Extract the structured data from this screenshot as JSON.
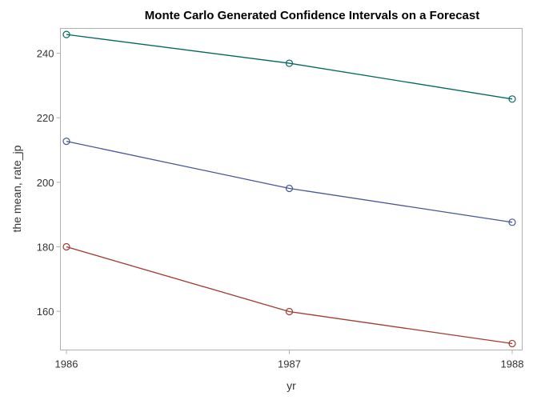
{
  "chart_data": {
    "type": "line",
    "title": "Monte Carlo Generated Confidence Intervals on a Forecast",
    "xlabel": "yr",
    "ylabel": "the mean, rate_jp",
    "x": [
      1986,
      1987,
      1988
    ],
    "xticks": [
      "1986",
      "1987",
      "1988"
    ],
    "yticks": [
      160,
      180,
      200,
      220,
      240
    ],
    "ylim": [
      148,
      247.7
    ],
    "grid": false,
    "markers": "open-circle",
    "series": [
      {
        "values": [
          245.8,
          236.9,
          225.8
        ],
        "color": "#01665E"
      },
      {
        "values": [
          212.7,
          198.1,
          187.6
        ],
        "color": "#445694"
      },
      {
        "values": [
          180.0,
          159.9,
          150.0
        ],
        "color": "#A23A2E"
      }
    ]
  }
}
